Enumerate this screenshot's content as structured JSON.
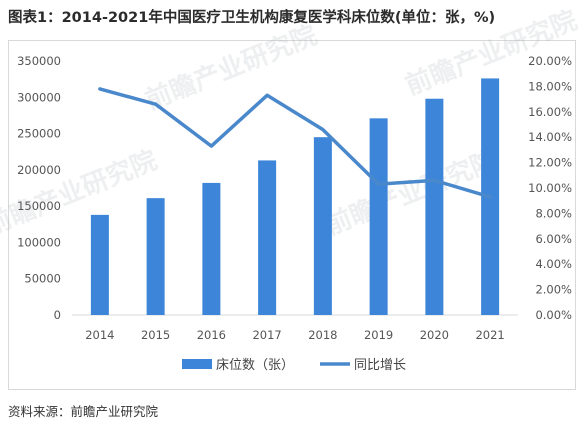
{
  "title": "图表1：2014-2021年中国医疗卫生机构康复医学科床位数(单位：张，%)",
  "source": "资料来源：前瞻产业研究院",
  "watermark": "前瞻产业研究院",
  "colors": {
    "bar": "#3d85d8",
    "line": "#4a88cc",
    "axis": "#d9d9d9"
  },
  "chart_data": {
    "type": "bar",
    "categories": [
      "2014",
      "2015",
      "2016",
      "2017",
      "2018",
      "2019",
      "2020",
      "2021"
    ],
    "series": [
      {
        "name": "床位数（张）",
        "type": "bar",
        "axis": "left",
        "values": [
          138000,
          161000,
          182000,
          213000,
          245000,
          271000,
          298000,
          326000
        ]
      },
      {
        "name": "同比增长",
        "type": "line",
        "axis": "right",
        "values": [
          17.8,
          16.6,
          13.3,
          17.3,
          14.6,
          10.3,
          10.6,
          9.3
        ]
      }
    ],
    "y_left": {
      "min": 0,
      "max": 350000,
      "step": 50000,
      "ticks": [
        "0",
        "50000",
        "100000",
        "150000",
        "200000",
        "250000",
        "300000",
        "350000"
      ]
    },
    "y_right": {
      "min": 0,
      "max": 20,
      "step": 2,
      "ticks": [
        "0.00%",
        "2.00%",
        "4.00%",
        "6.00%",
        "8.00%",
        "10.00%",
        "12.00%",
        "14.00%",
        "16.00%",
        "18.00%",
        "20.00%"
      ]
    },
    "grid": false,
    "legend": "bottom"
  }
}
